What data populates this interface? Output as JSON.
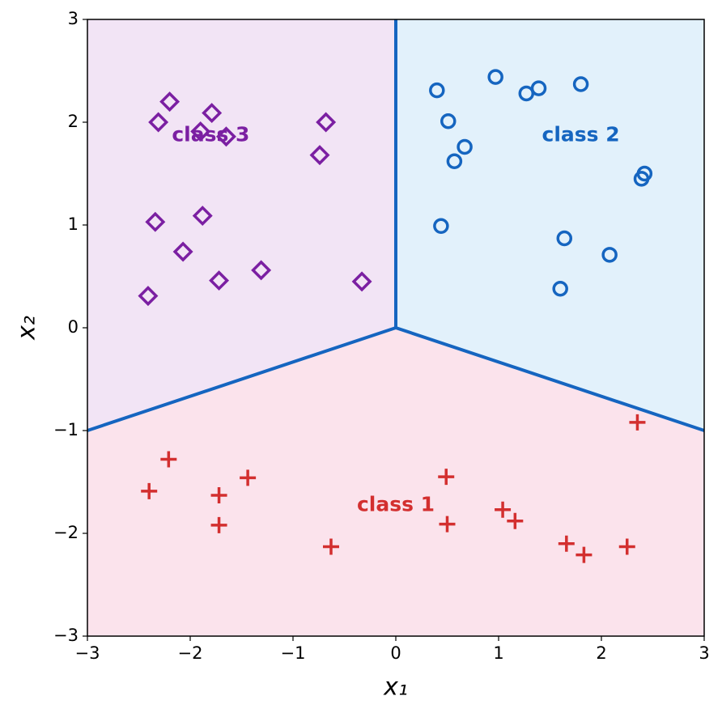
{
  "chart_data": {
    "type": "scatter",
    "xlabel": "x₁",
    "ylabel": "x₂",
    "xlim": [
      -3,
      3
    ],
    "ylim": [
      -3,
      3
    ],
    "xticks": [
      {
        "value": -3,
        "label": "−3"
      },
      {
        "value": -2,
        "label": "−2"
      },
      {
        "value": -1,
        "label": "−1"
      },
      0,
      1,
      2,
      3
    ],
    "yticks": [
      {
        "value": -3,
        "label": "−3"
      },
      {
        "value": -2,
        "label": "−2"
      },
      {
        "value": -1,
        "label": "−1"
      },
      0,
      1,
      2,
      3
    ],
    "boundary_color": "#1565c0",
    "boundaries": [
      {
        "x": [
          0,
          0
        ],
        "y": [
          0,
          3
        ]
      },
      {
        "x": [
          0,
          -3
        ],
        "y": [
          0,
          -1
        ]
      },
      {
        "x": [
          0,
          3
        ],
        "y": [
          0,
          -1
        ]
      }
    ],
    "series": [
      {
        "name": "class 1",
        "marker": "plus",
        "color": "#d32f2f",
        "region_color": "#fbe3ec",
        "x": [
          2.35,
          -2.21,
          -2.4,
          -1.44,
          -1.72,
          -1.72,
          0.49,
          -0.63,
          0.5,
          1.04,
          1.16,
          1.66,
          1.83,
          2.25
        ],
        "values": [
          -0.92,
          -1.28,
          -1.59,
          -1.46,
          -1.63,
          -1.92,
          -1.45,
          -2.13,
          -1.91,
          -1.77,
          -1.88,
          -2.1,
          -2.21,
          -2.13
        ]
      },
      {
        "name": "class 2",
        "marker": "circle",
        "color": "#1565c0",
        "region_color": "#e2f1fb",
        "x": [
          0.4,
          0.97,
          1.27,
          1.39,
          1.8,
          0.51,
          0.67,
          0.57,
          2.42,
          2.39,
          0.44,
          1.64,
          2.08,
          1.6
        ],
        "values": [
          2.31,
          2.44,
          2.28,
          2.33,
          2.37,
          2.01,
          1.76,
          1.62,
          1.5,
          1.45,
          0.99,
          0.87,
          0.71,
          0.38
        ]
      },
      {
        "name": "class 3",
        "marker": "diamond",
        "color": "#7b1fa2",
        "region_color": "#f2e4f5",
        "x": [
          -2.2,
          -2.31,
          -1.79,
          -1.9,
          -1.65,
          -0.68,
          -0.74,
          -2.34,
          -1.88,
          -2.07,
          -1.72,
          -1.31,
          -0.33,
          -2.41
        ],
        "values": [
          2.2,
          2.0,
          2.09,
          1.91,
          1.86,
          2.0,
          1.68,
          1.03,
          1.09,
          0.74,
          0.46,
          0.56,
          0.45,
          0.31
        ]
      }
    ]
  }
}
